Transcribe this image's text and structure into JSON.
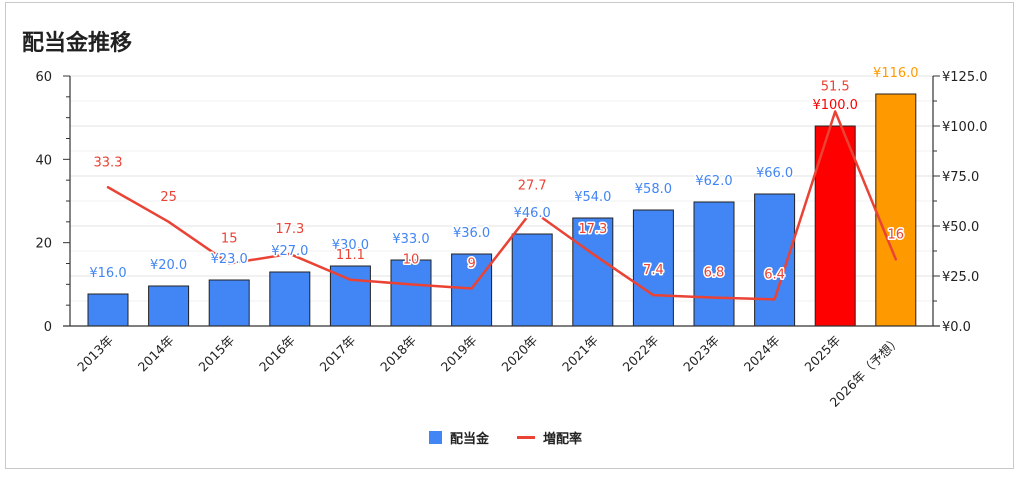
{
  "chart_data": {
    "type": "bar",
    "title": "配当金推移",
    "categories": [
      "2013年",
      "2014年",
      "2015年",
      "2016年",
      "2017年",
      "2018年",
      "2019年",
      "2020年",
      "2021年",
      "2022年",
      "2023年",
      "2024年",
      "2025年",
      "2026年（予想）"
    ],
    "series": [
      {
        "name": "配当金",
        "type": "bar",
        "values": [
          16.0,
          20.0,
          23.0,
          27.0,
          30.0,
          33.0,
          36.0,
          46.0,
          54.0,
          58.0,
          62.0,
          66.0,
          100.0,
          116.0
        ],
        "labels": [
          "¥16.0",
          "¥20.0",
          "¥23.0",
          "¥27.0",
          "¥30.0",
          "¥33.0",
          "¥36.0",
          "¥46.0",
          "¥54.0",
          "¥58.0",
          "¥62.0",
          "¥66.0",
          "¥100.0",
          "¥116.0"
        ],
        "color": "#4285F4",
        "point_colors": [
          "#4285F4",
          "#4285F4",
          "#4285F4",
          "#4285F4",
          "#4285F4",
          "#4285F4",
          "#4285F4",
          "#4285F4",
          "#4285F4",
          "#4285F4",
          "#4285F4",
          "#4285F4",
          "#FF0000",
          "#FF9900"
        ]
      },
      {
        "name": "増配率",
        "type": "line",
        "values": [
          33.3,
          25,
          15,
          17.3,
          11.1,
          10,
          9,
          27.7,
          17.3,
          7.4,
          6.8,
          6.4,
          51.5,
          16
        ],
        "labels": [
          "33.3",
          "25",
          "15",
          "17.3",
          "11.1",
          "10",
          "9",
          "27.7",
          "17.3",
          "7.4",
          "6.8",
          "6.4",
          "51.5",
          "16"
        ],
        "color": "#EA4335"
      }
    ],
    "y_left": {
      "ylim": [
        0,
        60
      ],
      "ticks": [
        0,
        20,
        40,
        60
      ],
      "tick_labels": [
        "0",
        "20",
        "40",
        "60"
      ]
    },
    "y_right": {
      "ylim": [
        0,
        125
      ],
      "ticks": [
        0,
        25,
        50,
        75,
        100,
        125
      ],
      "tick_labels": [
        "¥0.0",
        "¥25.0",
        "¥50.0",
        "¥75.0",
        "¥100.0",
        "¥125.0"
      ]
    },
    "grid": true,
    "legend": {
      "position": "bottom"
    }
  }
}
